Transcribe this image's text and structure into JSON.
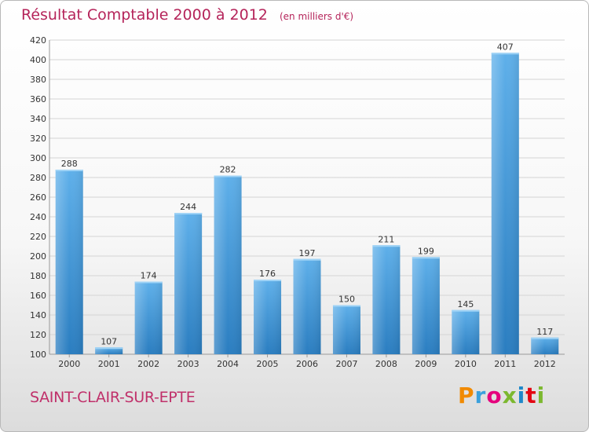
{
  "title": {
    "main": "Résultat Comptable 2000 à 2012",
    "unit": "(en milliers d'€)"
  },
  "city": "SAINT-CLAIR-SUR-EPTE",
  "logo": {
    "letters": [
      "P",
      "r",
      "o",
      "x",
      "i",
      "t",
      "i"
    ],
    "colors": [
      "#f18a00",
      "#3aa0dc",
      "#e5007d",
      "#7cb82f",
      "#1e88c9",
      "#e30613",
      "#7cb82f"
    ]
  },
  "colors": {
    "bar_top": "#5fb0ea",
    "bar_bottom": "#2a7dc0",
    "title": "#b5245a"
  },
  "chart_data": {
    "type": "bar",
    "categories": [
      "2000",
      "2001",
      "2002",
      "2003",
      "2004",
      "2005",
      "2006",
      "2007",
      "2008",
      "2009",
      "2010",
      "2011",
      "2012"
    ],
    "values": [
      288,
      107,
      174,
      244,
      282,
      176,
      197,
      150,
      211,
      199,
      145,
      407,
      117
    ],
    "data_labels": [
      "288",
      "107",
      "174",
      "244",
      "282",
      "176",
      "197",
      "150",
      "211",
      "199",
      "145",
      "407",
      "117"
    ],
    "ylim": [
      100,
      420
    ],
    "yticks": [
      100,
      120,
      140,
      160,
      180,
      200,
      220,
      240,
      260,
      280,
      300,
      320,
      340,
      360,
      380,
      400,
      420
    ],
    "grid": true,
    "xlabel": "",
    "ylabel": ""
  }
}
